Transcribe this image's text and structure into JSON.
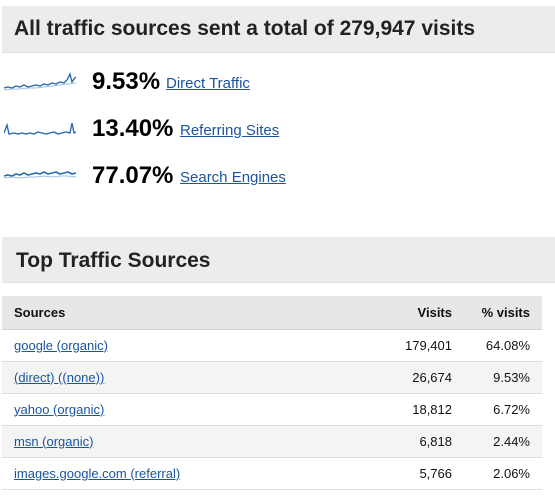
{
  "summary": {
    "title": "All traffic sources sent a total of 279,947 visits",
    "sources": [
      {
        "percent": "9.53%",
        "label": "Direct Traffic",
        "sparkline_icon": "sparkline-chart-icon"
      },
      {
        "percent": "13.40%",
        "label": "Referring Sites",
        "sparkline_icon": "sparkline-chart-icon"
      },
      {
        "percent": "77.07%",
        "label": "Search Engines",
        "sparkline_icon": "sparkline-chart-icon"
      }
    ]
  },
  "top_sources": {
    "title": "Top Traffic Sources",
    "columns": [
      "Sources",
      "Visits",
      "% visits"
    ],
    "rows": [
      {
        "source": "google (organic)",
        "visits": "179,401",
        "percent": "64.08%"
      },
      {
        "source": "(direct) ((none))",
        "visits": "26,674",
        "percent": "9.53%"
      },
      {
        "source": "yahoo (organic)",
        "visits": "18,812",
        "percent": "6.72%"
      },
      {
        "source": "msn (organic)",
        "visits": "6,818",
        "percent": "2.44%"
      },
      {
        "source": "images.google.com (referral)",
        "visits": "5,766",
        "percent": "2.06%"
      }
    ]
  },
  "colors": {
    "link": "#1a54a3",
    "sparkline": "#2b6cb0",
    "header_bg": "#ececec"
  }
}
